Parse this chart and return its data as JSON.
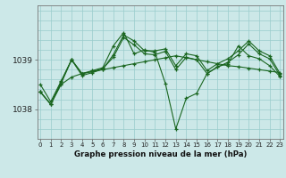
{
  "background_color": "#cce8e8",
  "plot_bg_color": "#cce8e8",
  "grid_color": "#99cccc",
  "line_color": "#1a6620",
  "marker_color": "#1a6620",
  "title": "Graphe pression niveau de la mer (hPa)",
  "xlabel_ticks": [
    0,
    1,
    2,
    3,
    4,
    5,
    6,
    7,
    8,
    9,
    10,
    11,
    12,
    13,
    14,
    15,
    16,
    17,
    18,
    19,
    20,
    21,
    22,
    23
  ],
  "yticks": [
    1038,
    1039
  ],
  "ylim": [
    1037.4,
    1040.1
  ],
  "xlim": [
    -0.3,
    23.3
  ],
  "series": [
    [
      1038.35,
      1038.1,
      1038.5,
      1038.65,
      1038.72,
      1038.76,
      1038.8,
      1038.84,
      1038.88,
      1038.92,
      1038.96,
      1039.0,
      1039.04,
      1039.08,
      1039.04,
      1039.0,
      1038.96,
      1038.92,
      1038.88,
      1038.86,
      1038.83,
      1038.8,
      1038.77,
      1038.74
    ],
    [
      1038.35,
      1038.1,
      1038.52,
      1039.0,
      1038.72,
      1038.76,
      1038.82,
      1039.05,
      1039.45,
      1039.3,
      1039.12,
      1039.1,
      1039.17,
      1038.8,
      1039.05,
      1039.0,
      1038.72,
      1038.85,
      1038.95,
      1039.1,
      1039.32,
      1039.12,
      1039.02,
      1038.68
    ],
    [
      1038.5,
      1038.15,
      1038.57,
      1039.0,
      1038.72,
      1038.78,
      1038.84,
      1039.28,
      1039.55,
      1039.12,
      1039.2,
      1039.15,
      1038.52,
      1037.6,
      1038.22,
      1038.32,
      1038.72,
      1038.86,
      1038.92,
      1039.28,
      1039.08,
      1039.02,
      1038.88,
      1038.66
    ],
    [
      1038.35,
      1038.1,
      1038.55,
      1039.0,
      1038.68,
      1038.74,
      1038.81,
      1039.1,
      1039.5,
      1039.38,
      1039.18,
      1039.18,
      1039.22,
      1038.88,
      1039.12,
      1039.08,
      1038.78,
      1038.92,
      1039.02,
      1039.18,
      1039.38,
      1039.18,
      1039.08,
      1038.72
    ]
  ]
}
